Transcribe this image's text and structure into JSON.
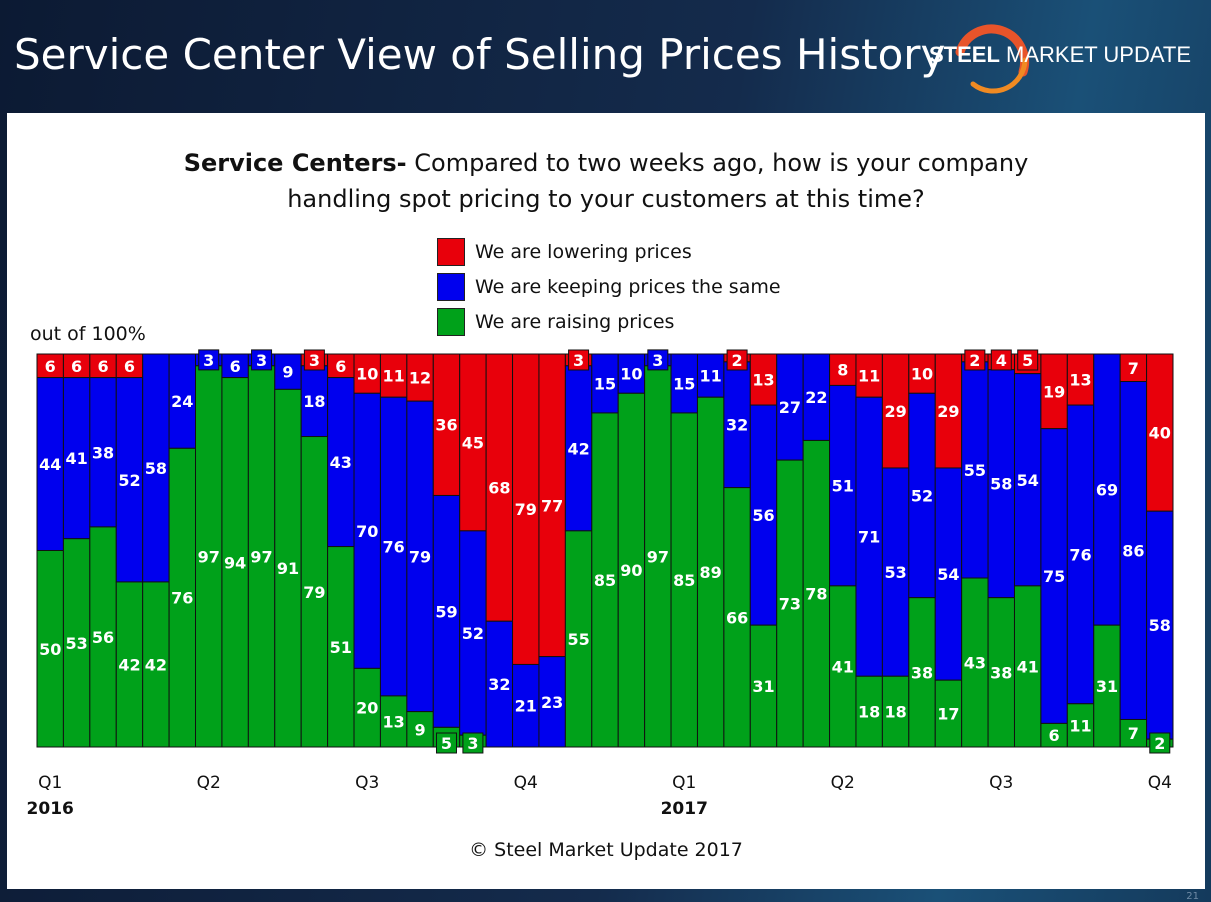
{
  "slide": {
    "title": "Service Center View of Selling Prices History",
    "logo": {
      "bold": "STEEL",
      "regular": "MARKET UPDATE"
    },
    "page_number": "21"
  },
  "chart_data": {
    "type": "bar",
    "stacked": true,
    "title_bold": "Service Centers-",
    "title_line1": " Compared to two weeks ago, how is your company",
    "title_line2": "handling spot pricing to your customers at this time?",
    "unit_label": "out of 100%",
    "ylim": [
      0,
      100
    ],
    "grid": false,
    "legend_placement": "top-center",
    "colors": {
      "lowering": "#e8000b",
      "same": "#0000ee",
      "raising": "#00a11a"
    },
    "series": [
      {
        "name": "We are lowering prices",
        "values": [
          6,
          6,
          6,
          6,
          0,
          0,
          0,
          0,
          0,
          0,
          3,
          6,
          10,
          11,
          12,
          36,
          45,
          68,
          79,
          77,
          3,
          0,
          0,
          0,
          0,
          0,
          2,
          13,
          0,
          0,
          8,
          11,
          29,
          10,
          29,
          2,
          4,
          5,
          19,
          13,
          0,
          7,
          40
        ]
      },
      {
        "name": "We are keeping prices the same",
        "values": [
          44,
          41,
          38,
          52,
          58,
          24,
          3,
          6,
          3,
          9,
          18,
          43,
          70,
          76,
          79,
          59,
          52,
          32,
          21,
          23,
          42,
          15,
          10,
          3,
          15,
          11,
          32,
          56,
          27,
          22,
          51,
          71,
          53,
          52,
          54,
          55,
          58,
          54,
          75,
          76,
          69,
          86,
          58
        ]
      },
      {
        "name": "We are raising prices",
        "values": [
          50,
          53,
          56,
          42,
          42,
          76,
          97,
          94,
          97,
          91,
          79,
          51,
          20,
          13,
          9,
          5,
          3,
          0,
          0,
          0,
          55,
          85,
          90,
          97,
          85,
          89,
          66,
          31,
          73,
          78,
          41,
          18,
          18,
          38,
          17,
          43,
          38,
          41,
          6,
          11,
          31,
          7,
          2
        ]
      }
    ],
    "x_ticks": [
      {
        "index": 0,
        "label": "Q1"
      },
      {
        "index": 6,
        "label": "Q2"
      },
      {
        "index": 12,
        "label": "Q3"
      },
      {
        "index": 18,
        "label": "Q4"
      },
      {
        "index": 24,
        "label": "Q1"
      },
      {
        "index": 30,
        "label": "Q2"
      },
      {
        "index": 36,
        "label": "Q3"
      },
      {
        "index": 42,
        "label": "Q4"
      }
    ],
    "year_labels": [
      {
        "index": 0,
        "label": "2016"
      },
      {
        "index": 24,
        "label": "2017"
      }
    ],
    "copyright": "© Steel Market Update 2017"
  }
}
